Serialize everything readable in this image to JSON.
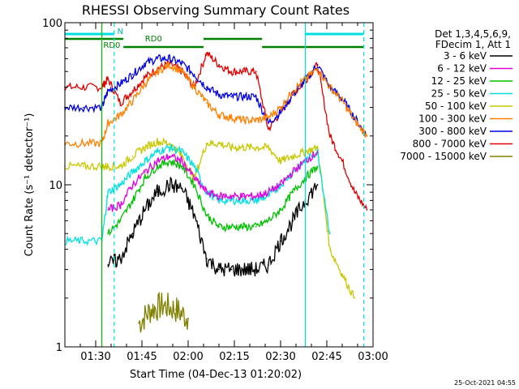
{
  "chart_data": {
    "type": "line",
    "title": "RHESSI Observing Summary Count Rates",
    "xlabel": "Start Time (04-Dec-13 01:20:02)",
    "ylabel": "Count Rate (s⁻¹ detector⁻¹)",
    "x_unit": "UT time",
    "xlim": [
      "01:20",
      "03:00"
    ],
    "ylim": [
      1,
      100
    ],
    "yscale": "log",
    "x_ticks": [
      "01:30",
      "01:45",
      "02:00",
      "02:15",
      "02:30",
      "02:45",
      "03:00"
    ],
    "y_ticks": [
      {
        "value": 1,
        "label": "1"
      },
      {
        "value": 10,
        "label": "10"
      },
      {
        "value": 100,
        "label": "100"
      }
    ],
    "legend_position": "right",
    "legend_header": [
      "Det 1,3,4,5,6,9,",
      "FDecim 1, Att 1"
    ],
    "series": [
      {
        "name": "3 - 6 keV",
        "color": "#000000",
        "x": [
          "01:34",
          "01:38",
          "01:42",
          "01:46",
          "01:50",
          "01:54",
          "01:58",
          "02:02",
          "02:06",
          "02:10",
          "02:14",
          "02:18",
          "02:22",
          "02:26",
          "02:30",
          "02:34",
          "02:38",
          "02:42"
        ],
        "y": [
          3.2,
          3.5,
          5,
          7,
          9,
          10,
          9.5,
          6.5,
          3.5,
          3,
          3,
          3,
          3,
          3.2,
          4.5,
          6,
          8,
          10
        ]
      },
      {
        "name": "6 - 12 keV",
        "color": "#e000e0",
        "x": [
          "01:34",
          "01:38",
          "01:42",
          "01:46",
          "01:50",
          "01:54",
          "01:58",
          "02:02",
          "02:06",
          "02:10",
          "02:14",
          "02:18",
          "02:22",
          "02:26",
          "02:30",
          "02:34",
          "02:38",
          "02:42"
        ],
        "y": [
          7,
          7.5,
          10,
          12,
          14,
          15,
          14,
          11,
          9,
          8.5,
          8.5,
          8.5,
          8.5,
          9,
          10,
          12,
          14,
          16
        ]
      },
      {
        "name": "12 - 25 keV",
        "color": "#00c000",
        "x": [
          "01:34",
          "01:38",
          "01:42",
          "01:46",
          "01:50",
          "01:54",
          "01:58",
          "02:02",
          "02:06",
          "02:10",
          "02:14",
          "02:18",
          "02:22",
          "02:26",
          "02:30",
          "02:34",
          "02:38",
          "02:42"
        ],
        "y": [
          5,
          6,
          8,
          11,
          13,
          14,
          13,
          10,
          6.5,
          5.5,
          5.5,
          5.5,
          5.5,
          6,
          7,
          9,
          11,
          13
        ]
      },
      {
        "name": "25 - 50 keV",
        "color": "#00e0e0",
        "x": [
          "01:20",
          "01:26",
          "01:32",
          "01:34",
          "01:38",
          "01:42",
          "01:46",
          "01:50",
          "01:54",
          "01:58",
          "02:02",
          "02:06",
          "02:10",
          "02:14",
          "02:18",
          "02:22",
          "02:26",
          "02:30",
          "02:34",
          "02:38",
          "02:42",
          "02:46"
        ],
        "y": [
          4.5,
          4.5,
          4.5,
          9,
          10,
          12,
          14,
          16,
          17,
          16,
          13,
          9,
          8,
          8,
          8,
          8,
          8.5,
          10,
          12,
          14,
          16,
          5
        ]
      },
      {
        "name": "50 - 100 keV",
        "color": "#c8c800",
        "x": [
          "01:20",
          "01:26",
          "01:32",
          "01:34",
          "01:38",
          "01:42",
          "01:46",
          "01:50",
          "01:54",
          "01:58",
          "02:02",
          "02:06",
          "02:10",
          "02:14",
          "02:18",
          "02:22",
          "02:26",
          "02:30",
          "02:34",
          "02:38",
          "02:42",
          "02:46",
          "02:50",
          "02:54"
        ],
        "y": [
          13,
          13,
          13,
          13,
          13,
          15,
          17,
          18.5,
          18,
          15,
          11,
          18,
          18,
          17,
          17,
          17,
          17,
          14,
          15,
          16,
          17,
          4,
          2.8,
          2
        ]
      },
      {
        "name": "100 - 300 keV",
        "color": "#ff8000",
        "x": [
          "01:20",
          "01:26",
          "01:32",
          "01:34",
          "01:38",
          "01:42",
          "01:46",
          "01:50",
          "01:54",
          "01:58",
          "02:02",
          "02:06",
          "02:10",
          "02:14",
          "02:18",
          "02:22",
          "02:26",
          "02:30",
          "02:34",
          "02:38",
          "02:42",
          "02:46",
          "02:50",
          "02:54",
          "02:58"
        ],
        "y": [
          18,
          18,
          18,
          24,
          27,
          33,
          42,
          50,
          55,
          50,
          40,
          32,
          27,
          26,
          25,
          25,
          26,
          30,
          38,
          45,
          52,
          40,
          33,
          25,
          20
        ]
      },
      {
        "name": "300 - 800 keV",
        "color": "#0000e0",
        "x": [
          "01:20",
          "01:26",
          "01:32",
          "01:34",
          "01:38",
          "01:42",
          "01:46",
          "01:50",
          "01:54",
          "01:58",
          "02:02",
          "02:06",
          "02:10",
          "02:14",
          "02:18",
          "02:22",
          "02:26",
          "02:30",
          "02:34",
          "02:38",
          "02:42",
          "02:46",
          "02:50",
          "02:54",
          "02:58"
        ],
        "y": [
          30,
          30,
          30,
          38,
          42,
          48,
          56,
          60,
          60,
          56,
          48,
          40,
          36,
          35,
          35,
          35,
          24,
          28,
          36,
          44,
          55,
          40,
          34,
          26,
          20
        ]
      },
      {
        "name": "800 - 7000 keV",
        "color": "#e00000",
        "x": [
          "01:20",
          "01:26",
          "01:32",
          "01:34",
          "01:38",
          "01:42",
          "01:46",
          "01:50",
          "01:54",
          "01:58",
          "02:02",
          "02:06",
          "02:10",
          "02:14",
          "02:18",
          "02:22",
          "02:26",
          "02:30",
          "02:34",
          "02:38",
          "02:42",
          "02:46",
          "02:50",
          "02:54",
          "02:58"
        ],
        "y": [
          40,
          40,
          40,
          45,
          32,
          38,
          46,
          52,
          56,
          50,
          40,
          65,
          55,
          50,
          50,
          50,
          22,
          28,
          36,
          44,
          55,
          20,
          14,
          9,
          7
        ]
      },
      {
        "name": "7000 - 15000 keV",
        "color": "#808000",
        "x": [
          "01:44",
          "01:48",
          "01:52",
          "01:56",
          "02:00"
        ],
        "y": [
          1.4,
          1.7,
          1.8,
          1.7,
          1.5
        ]
      }
    ],
    "annotations": [
      "N",
      "RD0",
      "RD0"
    ],
    "timestamp": "25-Oct-2021 04:55"
  }
}
